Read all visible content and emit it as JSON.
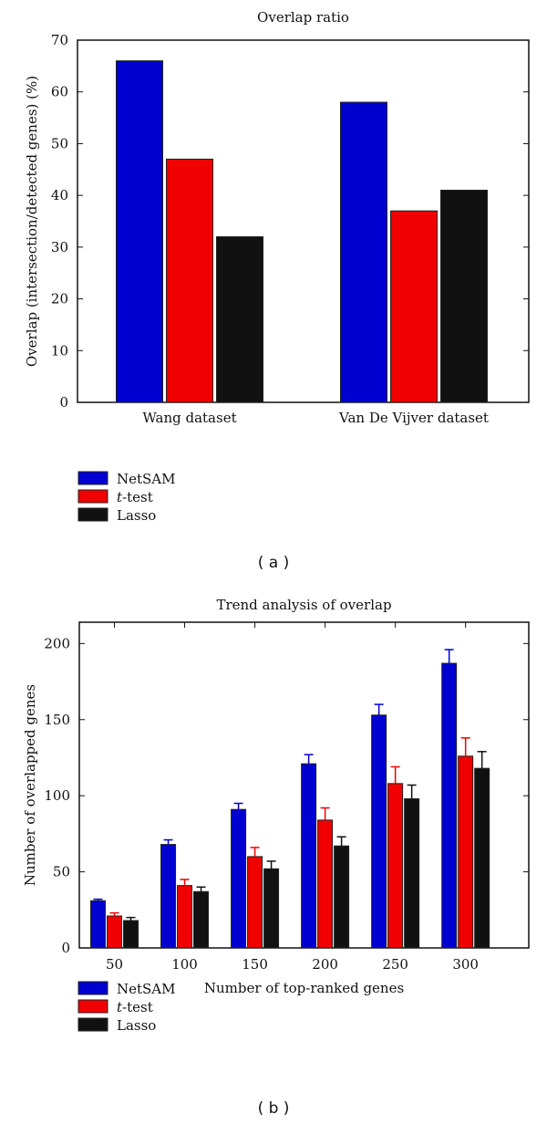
{
  "chart_data": [
    {
      "type": "bar",
      "panel_label": "( a )",
      "title": "Overlap ratio",
      "xlabel": "",
      "ylabel": "Overlap (intersection/detected genes) (%)",
      "categories": [
        "Wang dataset",
        "Van De Vijver dataset"
      ],
      "ylim": [
        0,
        70
      ],
      "yticks": [
        0,
        10,
        20,
        30,
        40,
        50,
        60,
        70
      ],
      "legend_placement": "below-left",
      "series": [
        {
          "name": "NetSAM",
          "color": "#0000d0",
          "values": [
            66,
            58
          ]
        },
        {
          "name": "t-test",
          "name_italic": "t",
          "name_rest": "-test",
          "color": "#f00000",
          "values": [
            47,
            37
          ]
        },
        {
          "name": "Lasso",
          "color": "#111111",
          "values": [
            32,
            41
          ]
        }
      ]
    },
    {
      "type": "bar",
      "panel_label": "( b )",
      "title": "Trend analysis of overlap",
      "xlabel": "Number of top-ranked genes",
      "ylabel": "Number of overlapped genes",
      "categories": [
        "50",
        "100",
        "150",
        "200",
        "250",
        "300"
      ],
      "x": [
        50,
        100,
        150,
        200,
        250,
        300
      ],
      "xlim": [
        25,
        345
      ],
      "ylim": [
        0,
        214
      ],
      "yticks": [
        0,
        50,
        100,
        150,
        200
      ],
      "legend_placement": "below-left",
      "error_bars": true,
      "series": [
        {
          "name": "NetSAM",
          "color": "#0000d0",
          "values": [
            31,
            68,
            91,
            121,
            153,
            187
          ],
          "err_upper": [
            32,
            71,
            95,
            127,
            160,
            196
          ]
        },
        {
          "name": "t-test",
          "name_italic": "t",
          "name_rest": "-test",
          "color": "#f00000",
          "values": [
            21,
            41,
            60,
            84,
            108,
            126
          ],
          "err_upper": [
            23,
            45,
            66,
            92,
            119,
            138
          ]
        },
        {
          "name": "Lasso",
          "color": "#111111",
          "values": [
            18,
            37,
            52,
            67,
            98,
            118
          ],
          "err_upper": [
            20,
            40,
            57,
            73,
            107,
            129
          ]
        }
      ]
    }
  ]
}
